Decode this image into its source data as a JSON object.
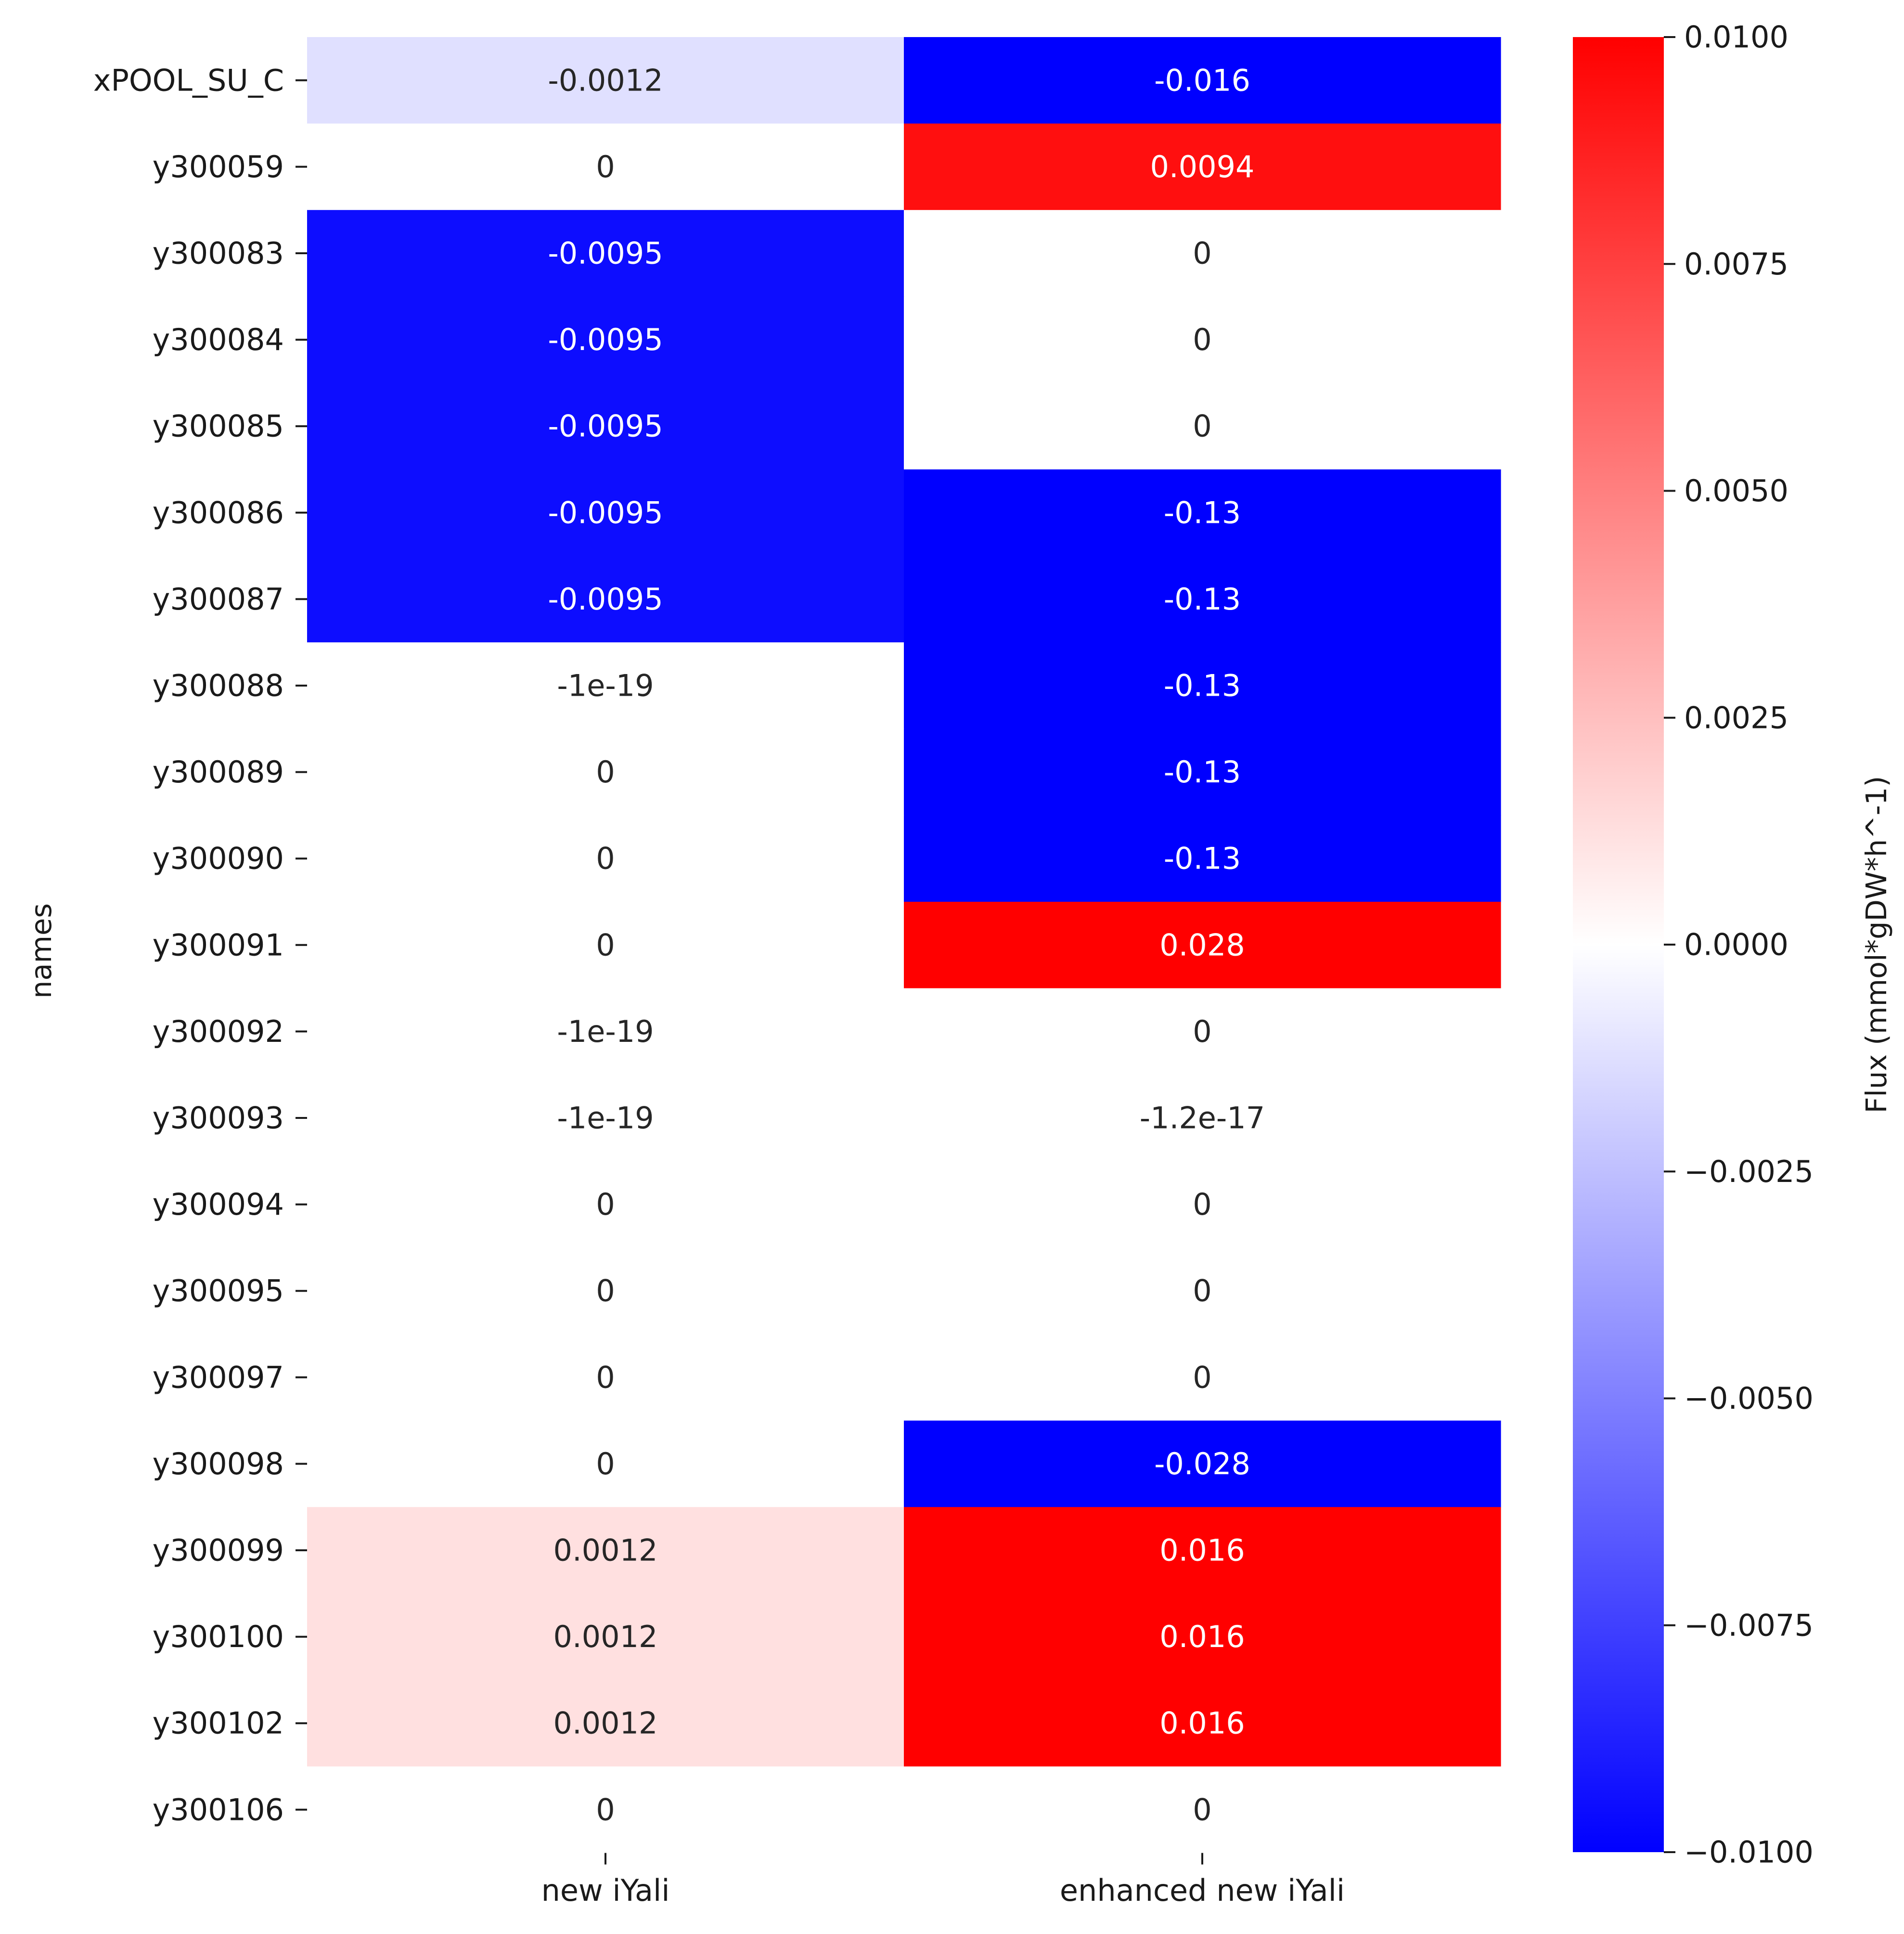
{
  "chart_data": {
    "type": "heatmap",
    "title": "",
    "xlabel": "",
    "ylabel": "names",
    "columns": [
      "new iYali",
      "enhanced new iYali"
    ],
    "rows": [
      "xPOOL_SU_C",
      "y300059",
      "y300083",
      "y300084",
      "y300085",
      "y300086",
      "y300087",
      "y300088",
      "y300089",
      "y300090",
      "y300091",
      "y300092",
      "y300093",
      "y300094",
      "y300095",
      "y300097",
      "y300098",
      "y300099",
      "y300100",
      "y300102",
      "y300106"
    ],
    "values": [
      [
        -0.0012,
        -0.016
      ],
      [
        0,
        0.0094
      ],
      [
        -0.0095,
        0
      ],
      [
        -0.0095,
        0
      ],
      [
        -0.0095,
        0
      ],
      [
        -0.0095,
        -0.13
      ],
      [
        -0.0095,
        -0.13
      ],
      [
        -1e-19,
        -0.13
      ],
      [
        0,
        -0.13
      ],
      [
        0,
        -0.13
      ],
      [
        0,
        0.028
      ],
      [
        -1e-19,
        0
      ],
      [
        -1e-19,
        -1.2e-17
      ],
      [
        0,
        0
      ],
      [
        0,
        0
      ],
      [
        0,
        0
      ],
      [
        0,
        -0.028
      ],
      [
        0.0012,
        0.016
      ],
      [
        0.0012,
        0.016
      ],
      [
        0.0012,
        0.016
      ],
      [
        0,
        0
      ]
    ],
    "annotations": [
      [
        "-0.0012",
        "-0.016"
      ],
      [
        "0",
        "0.0094"
      ],
      [
        "-0.0095",
        "0"
      ],
      [
        "-0.0095",
        "0"
      ],
      [
        "-0.0095",
        "0"
      ],
      [
        "-0.0095",
        "-0.13"
      ],
      [
        "-0.0095",
        "-0.13"
      ],
      [
        "-1e-19",
        "-0.13"
      ],
      [
        "0",
        "-0.13"
      ],
      [
        "0",
        "-0.13"
      ],
      [
        "0",
        "0.028"
      ],
      [
        "-1e-19",
        "0"
      ],
      [
        "-1e-19",
        "-1.2e-17"
      ],
      [
        "0",
        "0"
      ],
      [
        "0",
        "0"
      ],
      [
        "0",
        "0"
      ],
      [
        "0",
        "-0.028"
      ],
      [
        "0.0012",
        "0.016"
      ],
      [
        "0.0012",
        "0.016"
      ],
      [
        "0.0012",
        "0.016"
      ],
      [
        "0",
        "0"
      ]
    ],
    "colorbar": {
      "label": "Flux (mmol*gDW*h^-1)",
      "vmin": -0.01,
      "vmax": 0.01,
      "ticks": [
        0.01,
        0.0075,
        0.005,
        0.0025,
        0,
        -0.0025,
        -0.005,
        -0.0075,
        -0.01
      ],
      "tick_labels": [
        "0.0100",
        "0.0075",
        "0.0050",
        "0.0025",
        "0.0000",
        "−0.0025",
        "−0.0050",
        "−0.0075",
        "−0.0100"
      ],
      "colormap": "bwr",
      "low_color": "#0000ff",
      "mid_color": "#ffffff",
      "high_color": "#ff0000"
    }
  }
}
